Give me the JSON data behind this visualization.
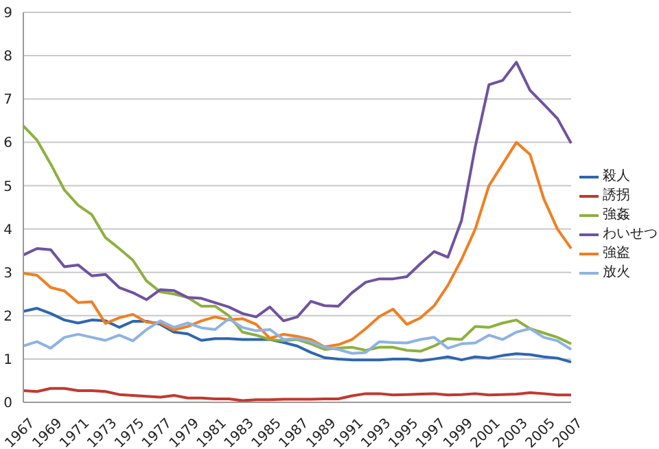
{
  "chart_data": {
    "type": "line",
    "categories": [
      "1967",
      null,
      "1969",
      null,
      "1971",
      null,
      "1973",
      null,
      "1975",
      null,
      "1977",
      null,
      "1979",
      null,
      "1981",
      null,
      "1983",
      null,
      "1985",
      null,
      "1987",
      null,
      "1989",
      null,
      "1991",
      null,
      "1993",
      null,
      "1995",
      null,
      "1997",
      null,
      "1999",
      null,
      "2001",
      null,
      "2003",
      null,
      "2005",
      null,
      "2007"
    ],
    "series": [
      {
        "name": "殺人",
        "color": "#2e66b0",
        "values": [
          2.1,
          2.17,
          2.05,
          1.9,
          1.83,
          1.9,
          1.88,
          1.73,
          1.87,
          1.87,
          1.8,
          1.62,
          1.58,
          1.43,
          1.47,
          1.47,
          1.45,
          1.45,
          1.45,
          1.38,
          1.3,
          1.15,
          1.03,
          1.0,
          0.98,
          0.98,
          0.98,
          1.0,
          1.0,
          0.96,
          1.0,
          1.05,
          0.98,
          1.05,
          1.02,
          1.08,
          1.12,
          1.1,
          1.05,
          1.02,
          0.93
        ]
      },
      {
        "name": "誘拐",
        "color": "#c0392f",
        "values": [
          0.27,
          0.25,
          0.32,
          0.32,
          0.27,
          0.27,
          0.25,
          0.18,
          0.16,
          0.14,
          0.12,
          0.16,
          0.1,
          0.1,
          0.08,
          0.08,
          0.04,
          0.06,
          0.06,
          0.07,
          0.07,
          0.07,
          0.08,
          0.08,
          0.15,
          0.2,
          0.2,
          0.17,
          0.18,
          0.19,
          0.2,
          0.17,
          0.18,
          0.2,
          0.17,
          0.18,
          0.19,
          0.22,
          0.2,
          0.17,
          0.17
        ]
      },
      {
        "name": "強姦",
        "color": "#8db13f",
        "values": [
          6.38,
          6.05,
          5.5,
          4.9,
          4.55,
          4.33,
          3.8,
          3.55,
          3.28,
          2.8,
          2.55,
          2.5,
          2.42,
          2.22,
          2.22,
          2.0,
          1.62,
          1.55,
          1.45,
          1.42,
          1.45,
          1.35,
          1.22,
          1.25,
          1.27,
          1.2,
          1.27,
          1.27,
          1.2,
          1.18,
          1.3,
          1.47,
          1.45,
          1.75,
          1.73,
          1.83,
          1.9,
          1.7,
          1.6,
          1.5,
          1.35
        ]
      },
      {
        "name": "わいせつ",
        "color": "#7052a0",
        "values": [
          3.4,
          3.55,
          3.52,
          3.13,
          3.17,
          2.92,
          2.95,
          2.65,
          2.53,
          2.37,
          2.6,
          2.58,
          2.42,
          2.4,
          2.3,
          2.2,
          2.05,
          1.97,
          2.2,
          1.88,
          1.97,
          2.33,
          2.23,
          2.22,
          2.53,
          2.77,
          2.85,
          2.85,
          2.9,
          3.2,
          3.48,
          3.35,
          4.2,
          5.9,
          7.33,
          7.43,
          7.85,
          7.2,
          6.88,
          6.55,
          5.98
        ]
      },
      {
        "name": "強盗",
        "color": "#f07f22",
        "values": [
          2.98,
          2.93,
          2.65,
          2.57,
          2.3,
          2.32,
          1.82,
          1.95,
          2.03,
          1.85,
          1.83,
          1.67,
          1.75,
          1.88,
          1.97,
          1.9,
          1.93,
          1.8,
          1.48,
          1.57,
          1.52,
          1.45,
          1.28,
          1.33,
          1.45,
          1.7,
          1.98,
          2.15,
          1.8,
          1.95,
          2.23,
          2.7,
          3.3,
          4.0,
          5.0,
          5.5,
          6.0,
          5.72,
          4.7,
          4.0,
          3.55
        ]
      },
      {
        "name": "放火",
        "color": "#8db3e2",
        "values": [
          1.3,
          1.4,
          1.25,
          1.5,
          1.57,
          1.5,
          1.43,
          1.55,
          1.42,
          1.68,
          1.88,
          1.73,
          1.83,
          1.72,
          1.68,
          1.93,
          1.73,
          1.65,
          1.68,
          1.45,
          1.47,
          1.4,
          1.27,
          1.22,
          1.13,
          1.15,
          1.4,
          1.38,
          1.37,
          1.45,
          1.5,
          1.25,
          1.35,
          1.37,
          1.55,
          1.45,
          1.62,
          1.7,
          1.5,
          1.42,
          1.22
        ]
      }
    ],
    "ylim": [
      0,
      9
    ],
    "yticks": [
      0,
      1,
      2,
      3,
      4,
      5,
      6,
      7,
      8,
      9
    ],
    "grid": "y",
    "legend": "right",
    "marker": "none",
    "line_style": "solid"
  }
}
